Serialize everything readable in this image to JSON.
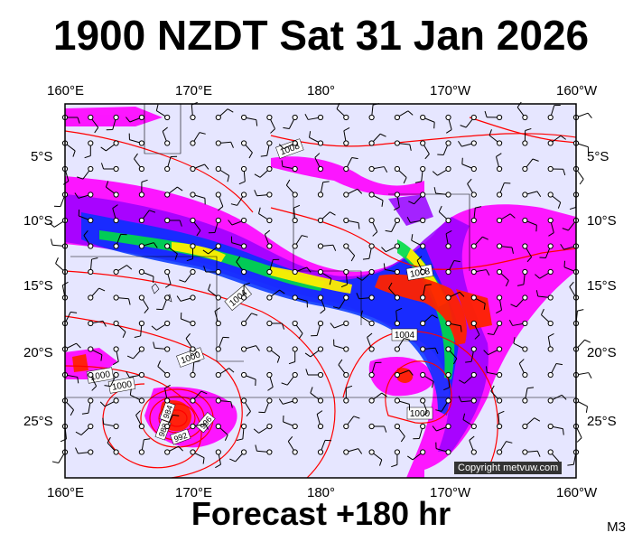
{
  "title": "1900 NZDT Sat 31 Jan 2026",
  "footer": "Forecast +180 hr",
  "model": "M3",
  "copyright": "Copyright metvuw.com",
  "axes": {
    "top": [
      "160°E",
      "170°E",
      "180°",
      "170°W",
      "160°W"
    ],
    "bottom": [
      "160°E",
      "170°E",
      "180°",
      "170°W",
      "160°W"
    ],
    "left": [
      "5°S",
      "10°S",
      "15°S",
      "20°S",
      "25°S"
    ],
    "right": [
      "5°S",
      "10°S",
      "15°S",
      "20°S",
      "25°S"
    ]
  },
  "isobar_labels": [
    "1008",
    "1008",
    "1004",
    "1004",
    "1000",
    "1000",
    "1000",
    "1000",
    "984",
    "988",
    "992",
    "996"
  ],
  "colors": {
    "rain_light": "#e6e6ff",
    "rain_pink": "#ff00ff",
    "rain_purple": "#9900ff",
    "rain_blue": "#0000ff",
    "rain_green": "#00cc00",
    "rain_yellow": "#ffff00",
    "rain_red": "#ff0000",
    "isobar": "#ff0000"
  }
}
